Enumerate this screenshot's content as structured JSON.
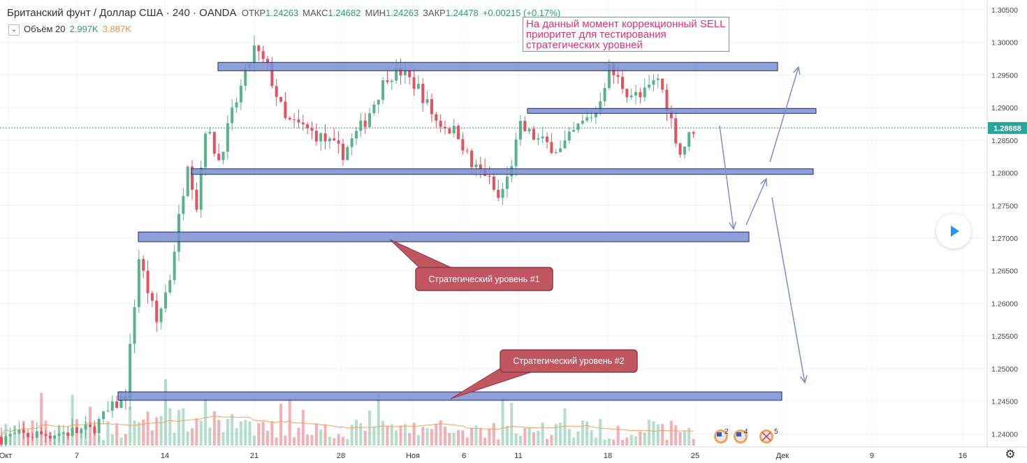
{
  "header": {
    "symbol": "Британский фунт / Доллар США · 240 · OANDA",
    "open_label": "ОТКР",
    "open": "1.24263",
    "high_label": "МАКС",
    "high": "1.24682",
    "low_label": "МИН",
    "low": "1.24263",
    "close_label": "ЗАКР",
    "close": "1.24478",
    "change": "+0.00215 (+0.17%)"
  },
  "volume_legend": {
    "icon": "eye-toggle-icon",
    "label": "Объём 20",
    "value1": "2.997K",
    "value2": "3.887K"
  },
  "annotation_note": "На данный момент коррекционный SELL приоритет для тестирования стратегических уровней",
  "callouts": [
    {
      "text": "Стратегический уровень #1"
    },
    {
      "text": "Стратегический уровень #2"
    }
  ],
  "current_price": "1.28688",
  "event_badges": [
    "2",
    "4",
    "5"
  ],
  "colors": {
    "up": "#59b38a",
    "down": "#e2525f",
    "level": "#7b8fd0",
    "callout": "#c0565f",
    "arrow": "#7c8fc6",
    "price_tag": "#26a69a"
  },
  "chart_data": {
    "type": "candlestick",
    "ylim": [
      1.238,
      1.3065
    ],
    "yticks": [
      "1.30500",
      "1.30000",
      "1.29500",
      "1.29000",
      "1.28500",
      "1.28000",
      "1.27500",
      "1.27000",
      "1.26500",
      "1.26000",
      "1.25500",
      "1.25000",
      "1.24500",
      "1.24000"
    ],
    "x_tick_labels": [
      "Окт",
      "7",
      "14",
      "21",
      "28",
      "Ноя",
      "6",
      "11",
      "18",
      "25",
      "Дек",
      "9",
      "16"
    ],
    "anchors": [
      {
        "t": 0,
        "p": 1.2395
      },
      {
        "t": 20,
        "p": 1.2405
      },
      {
        "t": 28,
        "p": 1.246
      },
      {
        "t": 31,
        "p": 1.267
      },
      {
        "t": 35,
        "p": 1.257
      },
      {
        "t": 38,
        "p": 1.264
      },
      {
        "t": 42,
        "p": 1.282
      },
      {
        "t": 44,
        "p": 1.275
      },
      {
        "t": 46,
        "p": 1.287
      },
      {
        "t": 49,
        "p": 1.282
      },
      {
        "t": 52,
        "p": 1.289
      },
      {
        "t": 57,
        "p": 1.299
      },
      {
        "t": 60,
        "p": 1.296
      },
      {
        "t": 64,
        "p": 1.288
      },
      {
        "t": 68,
        "p": 1.287
      },
      {
        "t": 73,
        "p": 1.285
      },
      {
        "t": 77,
        "p": 1.283
      },
      {
        "t": 82,
        "p": 1.288
      },
      {
        "t": 87,
        "p": 1.295
      },
      {
        "t": 90,
        "p": 1.2955
      },
      {
        "t": 94,
        "p": 1.293
      },
      {
        "t": 98,
        "p": 1.288
      },
      {
        "t": 103,
        "p": 1.286
      },
      {
        "t": 106,
        "p": 1.281
      },
      {
        "t": 109,
        "p": 1.28
      },
      {
        "t": 112,
        "p": 1.276
      },
      {
        "t": 114,
        "p": 1.279
      },
      {
        "t": 117,
        "p": 1.287
      },
      {
        "t": 121,
        "p": 1.285
      },
      {
        "t": 126,
        "p": 1.2835
      },
      {
        "t": 130,
        "p": 1.287
      },
      {
        "t": 134,
        "p": 1.2895
      },
      {
        "t": 137,
        "p": 1.296
      },
      {
        "t": 141,
        "p": 1.2925
      },
      {
        "t": 144,
        "p": 1.2915
      },
      {
        "t": 148,
        "p": 1.2945
      },
      {
        "t": 150,
        "p": 1.2905
      },
      {
        "t": 153,
        "p": 1.283
      },
      {
        "t": 156,
        "p": 1.2868
      }
    ],
    "levels": [
      1.2963,
      1.2895,
      1.2802,
      1.2702,
      1.2458
    ]
  }
}
